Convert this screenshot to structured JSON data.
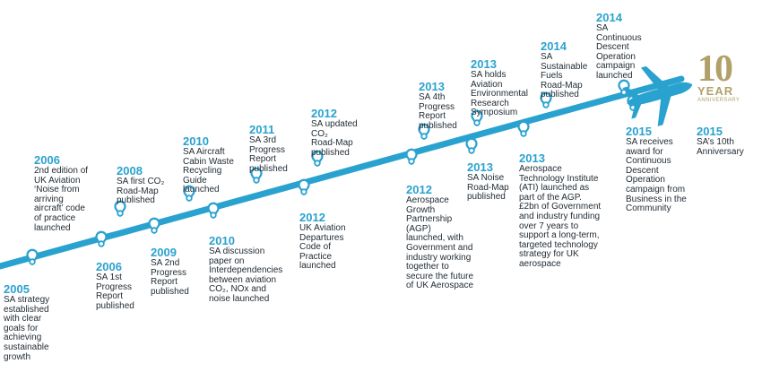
{
  "colors": {
    "line": "#2aa2cf",
    "year": "#2aa2cf",
    "text": "#1f2a33",
    "gold": "#b1a069"
  },
  "events": [
    {
      "id": "2005",
      "year": "2005",
      "lines": [
        "SA strategy",
        "established",
        "with clear",
        "goals for",
        "achieving",
        "sustainable",
        "growth"
      ]
    },
    {
      "id": "2006a",
      "year": "2006",
      "lines": [
        "2nd edition of",
        "UK Aviation",
        "‘Noise from",
        "arriving",
        "aircraft’ code",
        "of practice",
        "launched"
      ]
    },
    {
      "id": "2006b",
      "year": "2006",
      "lines": [
        "SA 1st",
        "Progress",
        "Report",
        "published"
      ]
    },
    {
      "id": "2008",
      "year": "2008",
      "lines": [
        "SA first CO₂",
        "Road-Map",
        "published"
      ]
    },
    {
      "id": "2009",
      "year": "2009",
      "lines": [
        "SA 2nd",
        "Progress",
        "Report",
        "published"
      ]
    },
    {
      "id": "2010a",
      "year": "2010",
      "lines": [
        "SA Aircraft",
        "Cabin Waste",
        "Recycling",
        "Guide",
        "launched"
      ]
    },
    {
      "id": "2010b",
      "year": "2010",
      "lines": [
        "SA discussion",
        "paper on",
        "Interdependencies",
        "between aviation",
        "CO₂, NOx and",
        "noise launched"
      ]
    },
    {
      "id": "2011",
      "year": "2011",
      "lines": [
        "SA 3rd",
        "Progress",
        "Report",
        "published"
      ]
    },
    {
      "id": "2012a",
      "year": "2012",
      "lines": [
        "SA updated",
        "CO₂",
        "Road-Map",
        "published"
      ]
    },
    {
      "id": "2012b",
      "year": "2012",
      "lines": [
        "UK Aviation",
        "Departures",
        "Code of",
        "Practice",
        "launched"
      ]
    },
    {
      "id": "2012c",
      "year": "2012",
      "lines": [
        "Aerospace",
        "Growth",
        "Partnership",
        "(AGP)",
        "launched, with",
        "Government and",
        "industry working",
        "together to",
        "secure the future",
        "of UK Aerospace"
      ]
    },
    {
      "id": "2013a",
      "year": "2013",
      "lines": [
        "SA 4th",
        "Progress",
        "Report",
        "published"
      ]
    },
    {
      "id": "2013b",
      "year": "2013",
      "lines": [
        "SA holds",
        "Aviation",
        "Environmental",
        "Research",
        "Symposium"
      ]
    },
    {
      "id": "2013c",
      "year": "2013",
      "lines": [
        "SA Noise",
        "Road-Map",
        "published"
      ]
    },
    {
      "id": "2013d",
      "year": "2013",
      "lines": [
        "Aerospace",
        "Technology Institute",
        "(ATI) launched as",
        "part of the AGP.",
        "£2bn of Government",
        "and industry funding",
        "over 7 years to",
        "support a long-term,",
        "targeted technology",
        "strategy for UK",
        "aerospace"
      ]
    },
    {
      "id": "2014a",
      "year": "2014",
      "lines": [
        "SA",
        "Sustainable",
        "Fuels",
        "Road-Map",
        "published"
      ]
    },
    {
      "id": "2014b",
      "year": "2014",
      "lines": [
        "SA",
        "Continuous",
        "Descent",
        "Operation",
        "campaign",
        "launched"
      ]
    },
    {
      "id": "2015a",
      "year": "2015",
      "lines": [
        "SA receives",
        "award for",
        "Continuous",
        "Descent",
        "Operation",
        "campaign from",
        "Business in the",
        "Community"
      ]
    },
    {
      "id": "2015b",
      "year": "2015",
      "lines": [
        "SA’s 10th",
        "Anniversary"
      ]
    }
  ],
  "badge": {
    "number": "10",
    "word": "YEAR",
    "sub": "ANNIVERSARY"
  },
  "icons": {
    "plane": "airplane-icon",
    "marker": "location-pin-icon"
  }
}
